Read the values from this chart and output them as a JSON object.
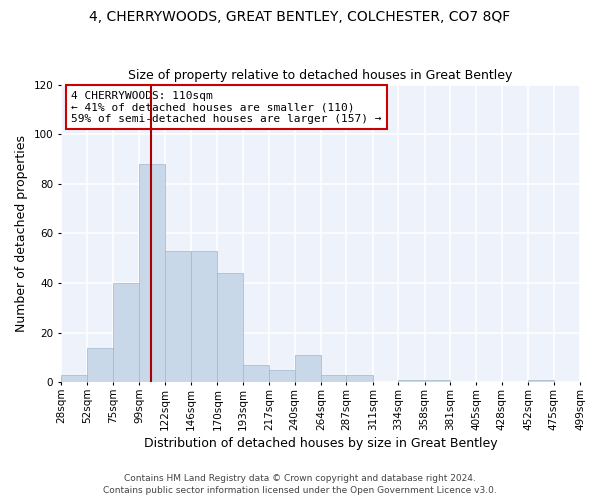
{
  "title_line1": "4, CHERRYWOODS, GREAT BENTLEY, COLCHESTER, CO7 8QF",
  "title_line2": "Size of property relative to detached houses in Great Bentley",
  "xlabel": "Distribution of detached houses by size in Great Bentley",
  "ylabel": "Number of detached properties",
  "bar_color": "#c8d8e8",
  "bar_edge_color": "#a0b8cc",
  "vline_color": "#aa0000",
  "vline_x": 110,
  "annotation_text": "4 CHERRYWOODS: 110sqm\n← 41% of detached houses are smaller (110)\n59% of semi-detached houses are larger (157) →",
  "footer_line1": "Contains HM Land Registry data © Crown copyright and database right 2024.",
  "footer_line2": "Contains public sector information licensed under the Open Government Licence v3.0.",
  "bin_edges": [
    28,
    52,
    75,
    99,
    122,
    146,
    170,
    193,
    217,
    240,
    264,
    287,
    311,
    334,
    358,
    381,
    405,
    428,
    452,
    475,
    499
  ],
  "bar_heights": [
    3,
    14,
    40,
    88,
    53,
    53,
    44,
    7,
    5,
    11,
    3,
    3,
    0,
    1,
    1,
    0,
    0,
    0,
    1,
    0
  ],
  "ylim": [
    0,
    120
  ],
  "yticks": [
    0,
    20,
    40,
    60,
    80,
    100,
    120
  ],
  "background_color": "#eef2fb",
  "grid_color": "#ffffff",
  "fig_bg_color": "#ffffff",
  "title_fontsize": 10,
  "subtitle_fontsize": 9,
  "axis_label_fontsize": 9,
  "tick_label_fontsize": 7.5,
  "ylabel_fontsize": 9
}
